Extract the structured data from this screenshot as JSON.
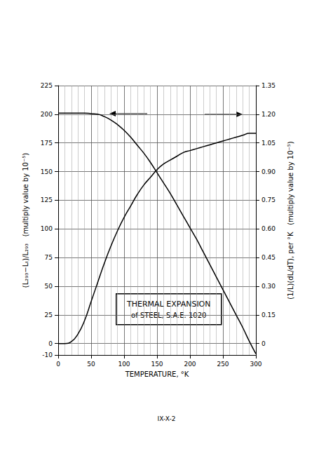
{
  "chart_data": {
    "type": "line",
    "title": "THERMAL EXPANSION",
    "subtitle": "of STEEL, S.A.E. 1020",
    "annotations": [
      "IX-X-2"
    ],
    "x_label": "TEMPERATURE, °K",
    "y_label": "(L₂₉₃−Lₜ)/L₂₉₃   (multiply value by 10⁻⁵)",
    "y2_label": "(1/L)(dL/dT), per °K   (multiply value by 10⁻⁵)",
    "x": [
      0,
      10,
      20,
      30,
      40,
      50,
      60,
      70,
      80,
      90,
      100,
      110,
      120,
      130,
      140,
      150,
      160,
      170,
      180,
      190,
      200,
      210,
      220,
      230,
      240,
      250,
      260,
      270,
      280,
      290,
      300
    ],
    "series": [
      {
        "name": "(L₂₉₃−Lₜ)/L₂₉₃",
        "color": "#000000",
        "axis": "y",
        "values": [
          201,
          201,
          201,
          201,
          201,
          200.5,
          200,
          198,
          195,
          191,
          186,
          180,
          173,
          166,
          158,
          149,
          140,
          131,
          121,
          111,
          101,
          91,
          80,
          69,
          58,
          47,
          36,
          25,
          14,
          2,
          -9
        ]
      },
      {
        "name": "(1/L)(dL/dT)",
        "color": "#000000",
        "axis": "y2",
        "values": [
          0,
          0,
          0.01,
          0.05,
          0.12,
          0.22,
          0.32,
          0.42,
          0.51,
          0.59,
          0.66,
          0.72,
          0.78,
          0.83,
          0.87,
          0.91,
          0.94,
          0.96,
          0.98,
          1.0,
          1.01,
          1.02,
          1.03,
          1.04,
          1.05,
          1.06,
          1.07,
          1.08,
          1.09,
          1.1,
          1.1
        ]
      }
    ],
    "xlim": [
      0,
      300
    ],
    "xticks": [
      0,
      50,
      100,
      150,
      200,
      250,
      300
    ],
    "ylim": [
      -10,
      225
    ],
    "yticks": [
      -10,
      0,
      25,
      50,
      75,
      100,
      125,
      150,
      175,
      200,
      225
    ],
    "y2lim": [
      -0.06,
      1.35
    ],
    "y2ticks": [
      0,
      0.15,
      {
        "value": 0.3,
        "label": "0.30"
      },
      0.45,
      {
        "value": 0.6,
        "label": "0.60"
      },
      0.75,
      {
        "value": 0.9,
        "label": "0.90"
      },
      1.05,
      {
        "value": 1.2,
        "label": "1.20"
      },
      1.35
    ],
    "grid": true
  }
}
